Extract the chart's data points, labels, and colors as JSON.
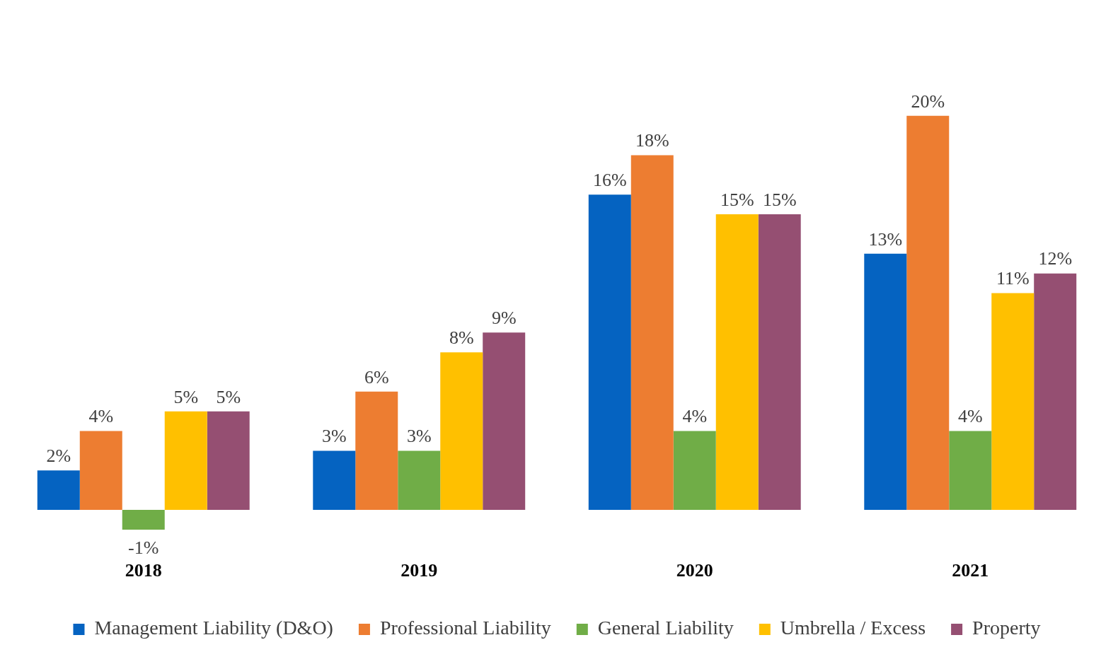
{
  "chart_data": {
    "type": "bar",
    "categories": [
      "2018",
      "2019",
      "2020",
      "2021"
    ],
    "series": [
      {
        "name": "Management Liability (D&O)",
        "color": "#0563c1",
        "values": [
          2,
          3,
          16,
          13
        ],
        "value_labels": [
          "2%",
          "3%",
          "16%",
          "13%"
        ]
      },
      {
        "name": "Professional Liability",
        "color": "#ed7d31",
        "values": [
          4,
          6,
          18,
          20
        ],
        "value_labels": [
          "4%",
          "6%",
          "18%",
          "20%"
        ]
      },
      {
        "name": "General Liability",
        "color": "#70ad47",
        "values": [
          -1,
          3,
          4,
          4
        ],
        "value_labels": [
          "-1%",
          "3%",
          "4%",
          "4%"
        ]
      },
      {
        "name": "Umbrella / Excess",
        "color": "#ffc000",
        "values": [
          5,
          8,
          15,
          11
        ],
        "value_labels": [
          "5%",
          "8%",
          "15%",
          "11%"
        ]
      },
      {
        "name": "Property",
        "color": "#954f72",
        "values": [
          5,
          9,
          15,
          12
        ],
        "value_labels": [
          "5%",
          "9%",
          "15%",
          "12%"
        ]
      }
    ],
    "tick_labels": "x",
    "grid": false,
    "legend": "bottom"
  }
}
